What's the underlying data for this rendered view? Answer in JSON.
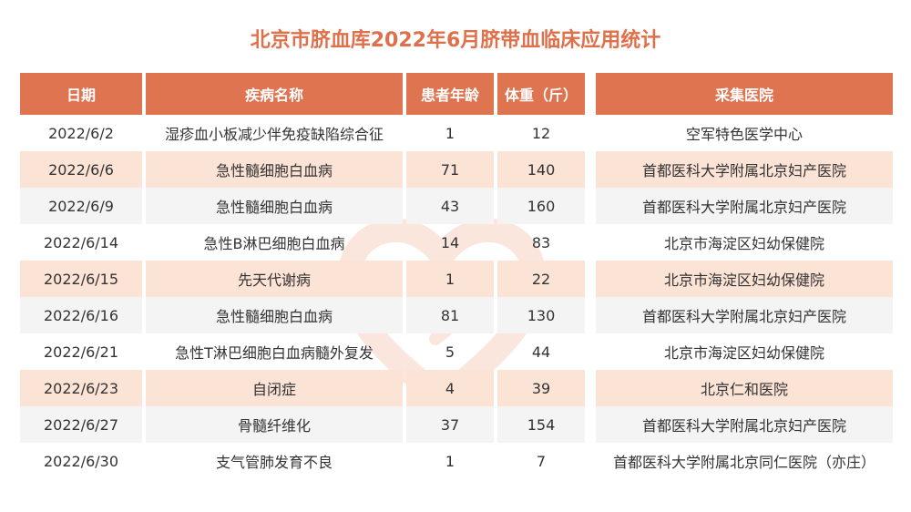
{
  "title": "北京市脐血库2022年6月脐带血临床应用统计",
  "headers": [
    "日期",
    "疾病名称",
    "患者年龄",
    "体重（斤）",
    "采集医院"
  ],
  "rows": [
    {
      "date": "2022/6/2",
      "disease": "湿疹血小板减少伴免疫缺陷综合征",
      "age": "1",
      "weight": "12",
      "hospital": "空军特色医学中心",
      "style": "white"
    },
    {
      "date": "2022/6/6",
      "disease": "急性髓细胞白血病",
      "age": "71",
      "weight": "140",
      "hospital": "首都医科大学附属北京妇产医院",
      "style": "striped"
    },
    {
      "date": "2022/6/9",
      "disease": "急性髓细胞白血病",
      "age": "43",
      "weight": "160",
      "hospital": "首都医科大学附属北京妇产医院",
      "style": "plain"
    },
    {
      "date": "2022/6/14",
      "disease": "急性B淋巴细胞白血病",
      "age": "14",
      "weight": "83",
      "hospital": "北京市海淀区妇幼保健院",
      "style": "white"
    },
    {
      "date": "2022/6/15",
      "disease": "先天代谢病",
      "age": "1",
      "weight": "22",
      "hospital": "北京市海淀区妇幼保健院",
      "style": "striped"
    },
    {
      "date": "2022/6/16",
      "disease": "急性髓细胞白血病",
      "age": "81",
      "weight": "130",
      "hospital": "首都医科大学附属北京妇产医院",
      "style": "plain"
    },
    {
      "date": "2022/6/21",
      "disease": "急性T淋巴细胞白血病髓外复发",
      "age": "5",
      "weight": "44",
      "hospital": "北京市海淀区妇幼保健院",
      "style": "white"
    },
    {
      "date": "2022/6/23",
      "disease": "自闭症",
      "age": "4",
      "weight": "39",
      "hospital": "北京仁和医院",
      "style": "striped"
    },
    {
      "date": "2022/6/27",
      "disease": "骨髓纤维化",
      "age": "37",
      "weight": "154",
      "hospital": "首都医科大学附属北京妇产医院",
      "style": "plain"
    },
    {
      "date": "2022/6/30",
      "disease": "支气管肺发育不良",
      "age": "1",
      "weight": "7",
      "hospital": "首都医科大学附属北京同仁医院（亦庄）",
      "style": "white"
    }
  ],
  "colors": {
    "accent": "#de7450",
    "title": "#e0704a",
    "stripe": "#fbe3d6",
    "plain": "#f4f4f4"
  }
}
